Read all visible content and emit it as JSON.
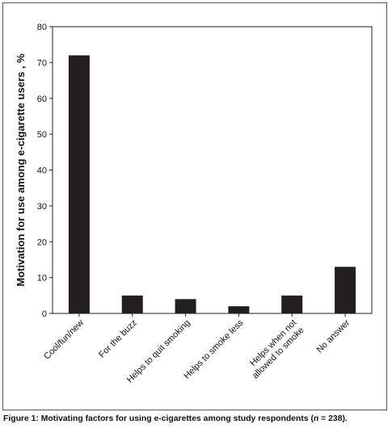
{
  "chart_data": {
    "type": "bar",
    "categories": [
      [
        "Cool/fun/new"
      ],
      [
        "For the buzz"
      ],
      [
        "Helps to quit smoking"
      ],
      [
        "Helps to smoke less"
      ],
      [
        "Helps when not",
        "allowed to smoke"
      ],
      [
        "No answer"
      ]
    ],
    "values": [
      72,
      5,
      4,
      2,
      5,
      13
    ],
    "ylabel": "Motivation for use among e-cigarette users , %",
    "ylim": [
      0,
      80
    ],
    "yticks": [
      0,
      10,
      20,
      30,
      40,
      50,
      60,
      70,
      80
    ],
    "bar_color": "#231f20",
    "grid": false
  },
  "caption": {
    "prefix": "Figure 1: Motivating factors for using e-cigarettes among study respondents (",
    "n_symbol": "n",
    "suffix": " = 238)."
  }
}
